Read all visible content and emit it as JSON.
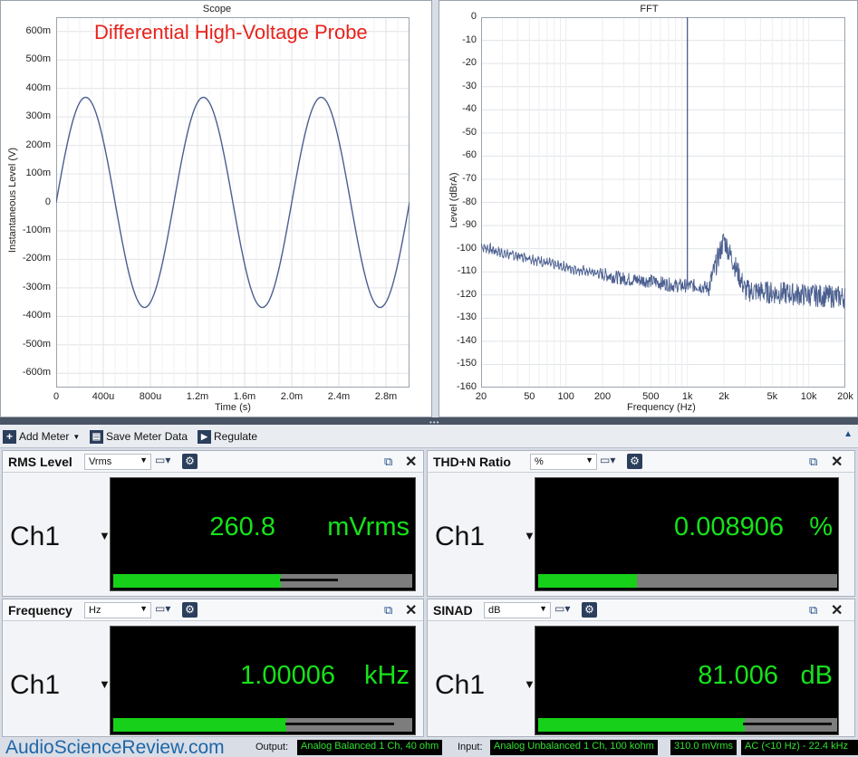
{
  "scope": {
    "title": "Scope",
    "watermark": "Differential High-Voltage Probe",
    "xlabel": "Time (s)",
    "ylabel": "Instantaneous Level (V)",
    "yticks": [
      "600m",
      "500m",
      "400m",
      "300m",
      "200m",
      "100m",
      "0",
      "-100m",
      "-200m",
      "-300m",
      "-400m",
      "-500m",
      "-600m"
    ],
    "xticks": [
      "0",
      "400u",
      "800u",
      "1.2m",
      "1.6m",
      "2.0m",
      "2.4m",
      "2.8m"
    ]
  },
  "fft": {
    "title": "FFT",
    "xlabel": "Frequency (Hz)",
    "ylabel": "Level (dBrA)",
    "yticks": [
      "0",
      "-10",
      "-20",
      "-30",
      "-40",
      "-50",
      "-60",
      "-70",
      "-80",
      "-90",
      "-100",
      "-110",
      "-120",
      "-130",
      "-140",
      "-150",
      "-160"
    ],
    "xticks": [
      "20",
      "50",
      "100",
      "200",
      "500",
      "1k",
      "2k",
      "5k",
      "10k",
      "20k"
    ]
  },
  "chart_data": [
    {
      "type": "line",
      "title": "Scope",
      "xlabel": "Time (s)",
      "ylabel": "Instantaneous Level (V)",
      "xlim": [
        0,
        0.003
      ],
      "ylim": [
        -0.65,
        0.65
      ],
      "series": [
        {
          "frequency_hz": 1000,
          "amplitude_v": 0.3688,
          "phase_note": "sine starting at 0 rising",
          "x": [
            0,
            0.00025,
            0.0005,
            0.00075,
            0.001,
            0.00125,
            0.0015,
            0.00175,
            0.002,
            0.00225,
            0.0025,
            0.00275,
            0.003
          ],
          "y": [
            0,
            0.369,
            0,
            -0.369,
            0,
            0.369,
            0,
            -0.369,
            0,
            0.369,
            0,
            -0.369,
            0
          ]
        }
      ]
    },
    {
      "type": "line",
      "title": "FFT",
      "xlabel": "Frequency (Hz)",
      "ylabel": "Level (dBrA)",
      "xscale": "log",
      "xlim": [
        20,
        20000
      ],
      "ylim": [
        -160,
        0
      ],
      "series": [
        {
          "x": [
            20,
            30,
            50,
            80,
            100,
            150,
            200,
            300,
            500,
            800,
            1000,
            1200,
            1500,
            2000,
            3000,
            5000,
            10000,
            20000
          ],
          "y": [
            -99,
            -102,
            -104,
            -107,
            -108,
            -110,
            -111,
            -113,
            -114,
            -116,
            0,
            -116,
            -117,
            -96,
            -118,
            -119,
            -120,
            -121
          ]
        }
      ]
    }
  ],
  "splitter": {
    "grip": "•••"
  },
  "toolbar": {
    "add_meter": "Add Meter",
    "save_meter_data": "Save Meter Data",
    "regulate": "Regulate"
  },
  "meters": {
    "rms": {
      "title": "RMS Level",
      "unit_select": "Vrms",
      "channel": "Ch1",
      "value": "260.8",
      "unit": "mVrms",
      "bar_fraction": 0.56
    },
    "thdn": {
      "title": "THD+N Ratio",
      "unit_select": "%",
      "channel": "Ch1",
      "value": "0.008906",
      "unit": "%",
      "bar_fraction": 0.33
    },
    "freq": {
      "title": "Frequency",
      "unit_select": "Hz",
      "channel": "Ch1",
      "value": "1.00006",
      "unit": "kHz",
      "bar_fraction": 0.58
    },
    "sinad": {
      "title": "SINAD",
      "unit_select": "dB",
      "channel": "Ch1",
      "value": "81.006",
      "unit": "dB",
      "bar_fraction": 0.69
    }
  },
  "status": {
    "site": "AudioScienceReview.com",
    "output_label": "Output:",
    "output_value": "Analog Balanced 1 Ch, 40 ohm",
    "input_label": "Input:",
    "input_value": "Analog Unbalanced 1 Ch, 100 kohm",
    "input_level": "310.0 mVrms",
    "filter": "AC (<10 Hz) - 22.4 kHz"
  },
  "colors": {
    "trace": "#4b5f8f",
    "meter_green": "#16e21a",
    "watermark": "#e8221b"
  }
}
